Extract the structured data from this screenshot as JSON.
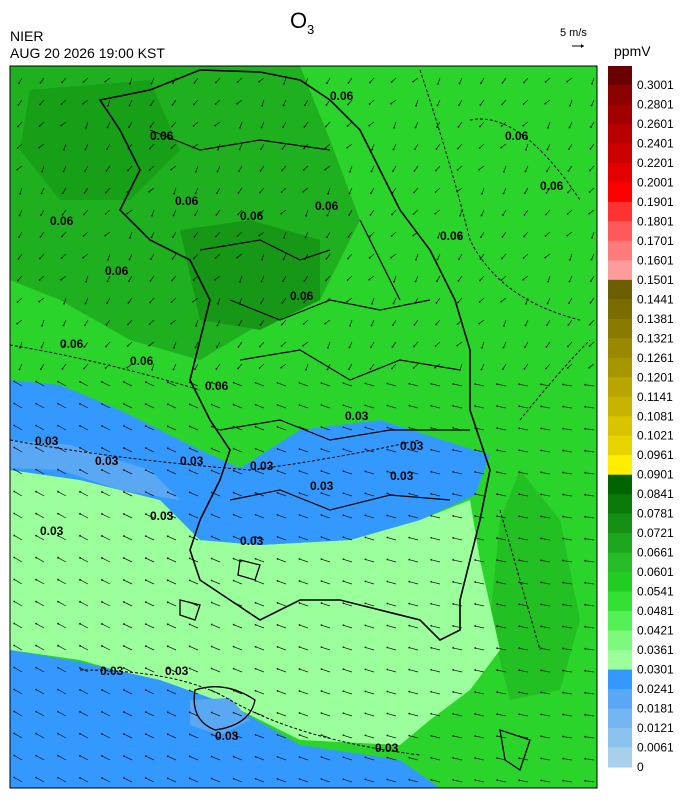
{
  "header": {
    "title": {
      "main": "O",
      "sub": "3"
    },
    "agency": "NIER",
    "datetime": "AUG 20 2026 19:00 KST",
    "vector_scale": "5 m/s"
  },
  "colorbar": {
    "unit": "ppmV",
    "ticks": [
      {
        "value": 0.3001,
        "label": "0.3001"
      },
      {
        "value": 0.2801,
        "label": "0.2801"
      },
      {
        "value": 0.2601,
        "label": "0.2601"
      },
      {
        "value": 0.2401,
        "label": "0.2401"
      },
      {
        "value": 0.2201,
        "label": "0.2201"
      },
      {
        "value": 0.2001,
        "label": "0.2001"
      },
      {
        "value": 0.1901,
        "label": "0.1901"
      },
      {
        "value": 0.1801,
        "label": "0.1801"
      },
      {
        "value": 0.1701,
        "label": "0.1701"
      },
      {
        "value": 0.1601,
        "label": "0.1601"
      },
      {
        "value": 0.1501,
        "label": "0.1501"
      },
      {
        "value": 0.1441,
        "label": "0.1441"
      },
      {
        "value": 0.1381,
        "label": "0.1381"
      },
      {
        "value": 0.1321,
        "label": "0.1321"
      },
      {
        "value": 0.1261,
        "label": "0.1261"
      },
      {
        "value": 0.1201,
        "label": "0.1201"
      },
      {
        "value": 0.1141,
        "label": "0.1141"
      },
      {
        "value": 0.1081,
        "label": "0.1081"
      },
      {
        "value": 0.1021,
        "label": "0.1021"
      },
      {
        "value": 0.0961,
        "label": "0.0961"
      },
      {
        "value": 0.0901,
        "label": "0.0901"
      },
      {
        "value": 0.0841,
        "label": "0.0841"
      },
      {
        "value": 0.0781,
        "label": "0.0781"
      },
      {
        "value": 0.0721,
        "label": "0.0721"
      },
      {
        "value": 0.0661,
        "label": "0.0661"
      },
      {
        "value": 0.0601,
        "label": "0.0601"
      },
      {
        "value": 0.0541,
        "label": "0.0541"
      },
      {
        "value": 0.0481,
        "label": "0.0481"
      },
      {
        "value": 0.0421,
        "label": "0.0421"
      },
      {
        "value": 0.0361,
        "label": "0.0361"
      },
      {
        "value": 0.0301,
        "label": "0.0301"
      },
      {
        "value": 0.0241,
        "label": "0.0241"
      },
      {
        "value": 0.0181,
        "label": "0.0181"
      },
      {
        "value": 0.0121,
        "label": "0.0121"
      },
      {
        "value": 0.0061,
        "label": "0.0061"
      },
      0
    ],
    "colors": [
      "#6b0000",
      "#8b0000",
      "#a20000",
      "#b80000",
      "#cc0000",
      "#e20000",
      "#ff0000",
      "#ff3232",
      "#ff5a5a",
      "#ff7a7a",
      "#ff9c9c",
      "#6b5e00",
      "#7a6c00",
      "#897a00",
      "#998800",
      "#a89600",
      "#b8a500",
      "#c8b400",
      "#d8c400",
      "#e8d400",
      "#ffee00",
      "#006400",
      "#0a7a0a",
      "#149014",
      "#1ea61e",
      "#28bc28",
      "#22cc22",
      "#33e033",
      "#55f055",
      "#7dfa7d",
      "#9bff9b",
      "#3399ff",
      "#5aa8f4",
      "#72b5f0",
      "#8cc3ee",
      "#a6d0ec"
    ]
  },
  "contour_labels": [
    "0.06",
    "0.06",
    "0.06",
    "0.06",
    "0.06",
    "0.06",
    "0.06",
    "0.06",
    "0.06",
    "0.06",
    "0.06",
    "0.06",
    "0.06",
    "0.06",
    "0.03",
    "0.03",
    "0.03",
    "0.03",
    "0.03",
    "0.03",
    "0.03",
    "0.03",
    "0.03",
    "0.03",
    "0.03",
    "0.03",
    "0.03",
    "0.03",
    "0.03"
  ]
}
